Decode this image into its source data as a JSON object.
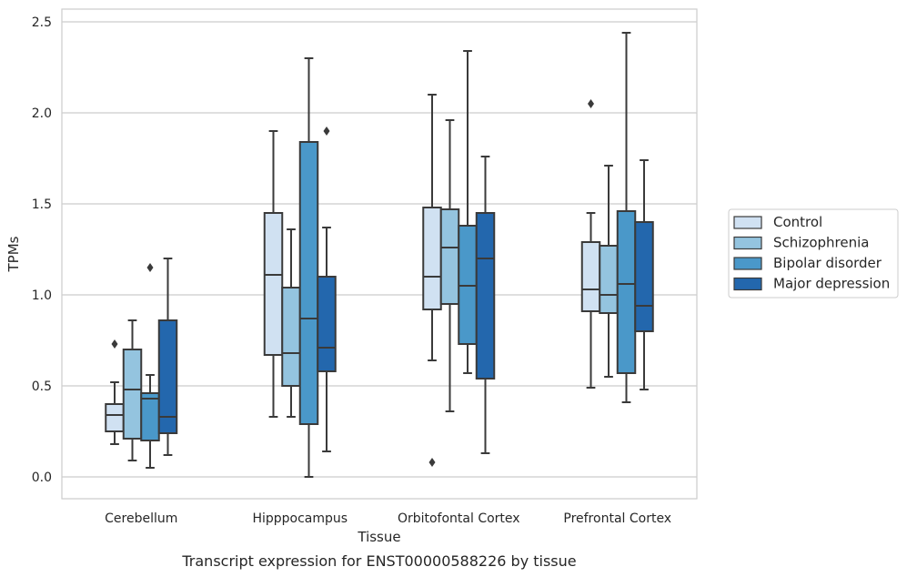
{
  "chart_data": {
    "type": "box",
    "xlabel": "Tissue",
    "ylabel": "TPMs",
    "caption": "Transcript expression for ENST00000588226 by tissue",
    "ylim": [
      -0.12,
      2.57
    ],
    "yticks": [
      0.0,
      0.5,
      1.0,
      1.5,
      2.0,
      2.5
    ],
    "ytick_labels": [
      "0.0",
      "0.5",
      "1.0",
      "1.5",
      "2.0",
      "2.5"
    ],
    "grid": "horizontal",
    "legend_position": "right",
    "categories": [
      "Cerebellum",
      "Hipppocampus",
      "Orbitofontal Cortex",
      "Prefrontal Cortex"
    ],
    "series": [
      {
        "name": "Control",
        "color": "#d0e1f2",
        "boxes": [
          {
            "whislo": 0.18,
            "q1": 0.25,
            "med": 0.34,
            "q3": 0.4,
            "whishi": 0.52,
            "fliers": [
              0.73
            ]
          },
          {
            "whislo": 0.33,
            "q1": 0.67,
            "med": 1.11,
            "q3": 1.45,
            "whishi": 1.9,
            "fliers": []
          },
          {
            "whislo": 0.64,
            "q1": 0.92,
            "med": 1.1,
            "q3": 1.48,
            "whishi": 2.1,
            "fliers": [
              0.08
            ]
          },
          {
            "whislo": 0.49,
            "q1": 0.91,
            "med": 1.03,
            "q3": 1.29,
            "whishi": 1.45,
            "fliers": [
              2.05
            ]
          }
        ]
      },
      {
        "name": "Schizophrenia",
        "color": "#94c4df",
        "boxes": [
          {
            "whislo": 0.09,
            "q1": 0.21,
            "med": 0.48,
            "q3": 0.7,
            "whishi": 0.86,
            "fliers": []
          },
          {
            "whislo": 0.33,
            "q1": 0.5,
            "med": 0.68,
            "q3": 1.04,
            "whishi": 1.36,
            "fliers": []
          },
          {
            "whislo": 0.36,
            "q1": 0.95,
            "med": 1.26,
            "q3": 1.47,
            "whishi": 1.96,
            "fliers": []
          },
          {
            "whislo": 0.55,
            "q1": 0.9,
            "med": 1.0,
            "q3": 1.27,
            "whishi": 1.71,
            "fliers": []
          }
        ]
      },
      {
        "name": "Bipolar disorder",
        "color": "#4a98c9",
        "boxes": [
          {
            "whislo": 0.05,
            "q1": 0.2,
            "med": 0.43,
            "q3": 0.46,
            "whishi": 0.56,
            "fliers": [
              1.15
            ]
          },
          {
            "whislo": 0.0,
            "q1": 0.29,
            "med": 0.87,
            "q3": 1.84,
            "whishi": 2.3,
            "fliers": []
          },
          {
            "whislo": 0.57,
            "q1": 0.73,
            "med": 1.05,
            "q3": 1.38,
            "whishi": 2.34,
            "fliers": []
          },
          {
            "whislo": 0.41,
            "q1": 0.57,
            "med": 1.06,
            "q3": 1.46,
            "whishi": 2.44,
            "fliers": []
          }
        ]
      },
      {
        "name": "Major depression",
        "color": "#2367ad",
        "boxes": [
          {
            "whislo": 0.12,
            "q1": 0.24,
            "med": 0.33,
            "q3": 0.86,
            "whishi": 1.2,
            "fliers": []
          },
          {
            "whislo": 0.14,
            "q1": 0.58,
            "med": 0.71,
            "q3": 1.1,
            "whishi": 1.37,
            "fliers": [
              1.9
            ]
          },
          {
            "whislo": 0.13,
            "q1": 0.54,
            "med": 1.2,
            "q3": 1.45,
            "whishi": 1.76,
            "fliers": []
          },
          {
            "whislo": 0.48,
            "q1": 0.8,
            "med": 0.94,
            "q3": 1.4,
            "whishi": 1.74,
            "fliers": []
          }
        ]
      }
    ]
  }
}
